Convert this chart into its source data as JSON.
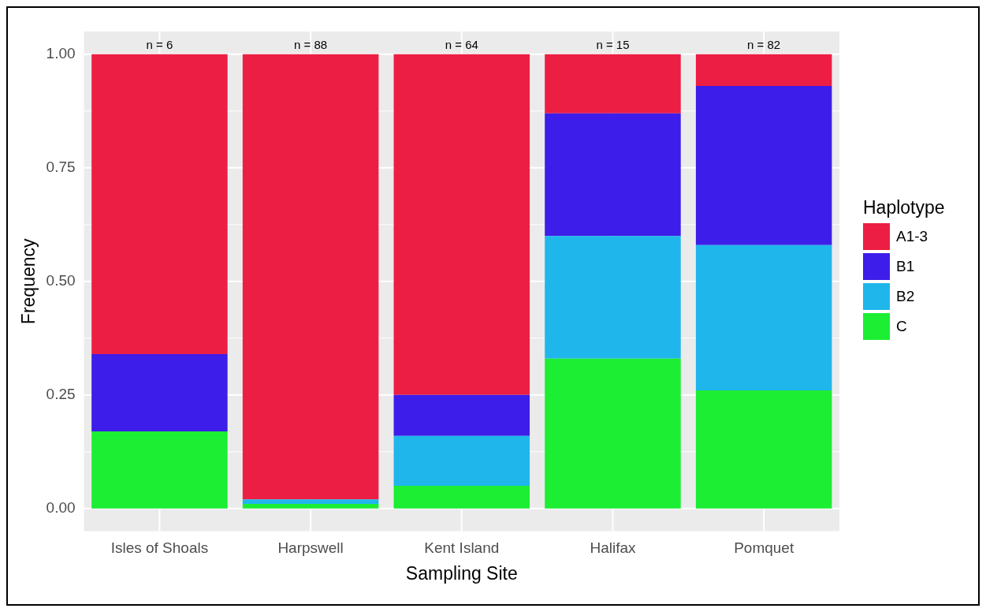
{
  "chart_data": {
    "type": "bar",
    "stacked": true,
    "xlabel": "Sampling Site",
    "ylabel": "Frequency",
    "legend_title": "Haplotype",
    "legend": "right",
    "grid": true,
    "categories": [
      "Isles of Shoals",
      "Harpswell",
      "Kent Island",
      "Halifax",
      "Pomquet"
    ],
    "ylim": [
      -0.05,
      1.05
    ],
    "yticks": [
      {
        "value": 0,
        "label": "0.00"
      },
      {
        "value": 0.25,
        "label": "0.25"
      },
      {
        "value": 0.5,
        "label": "0.50"
      },
      {
        "value": 0.75,
        "label": "0.75"
      },
      {
        "value": 1,
        "label": "1.00"
      }
    ],
    "series": [
      {
        "name": "C",
        "color": "#1cee33",
        "values": [
          0.17,
          0.01,
          0.05,
          0.33,
          0.26
        ]
      },
      {
        "name": "B2",
        "color": "#1fb6ec",
        "values": [
          0,
          0.01,
          0.11,
          0.27,
          0.32
        ]
      },
      {
        "name": "B1",
        "color": "#3d1de9",
        "values": [
          0.17,
          0,
          0.09,
          0.27,
          0.35
        ]
      },
      {
        "name": "A1-3",
        "color": "#ed1e43",
        "values": [
          0.66,
          0.98,
          0.75,
          0.13,
          0.07
        ]
      }
    ],
    "annotations": [
      {
        "text": "n = 6",
        "x": "Isles of Shoals",
        "y": 1
      },
      {
        "text": "n = 88",
        "x": "Harpswell",
        "y": 1
      },
      {
        "text": "n = 64",
        "x": "Kent Island",
        "y": 1
      },
      {
        "text": "n = 15",
        "x": "Halifax",
        "y": 1
      },
      {
        "text": "n = 82",
        "x": "Pomquet",
        "y": 1
      }
    ]
  }
}
